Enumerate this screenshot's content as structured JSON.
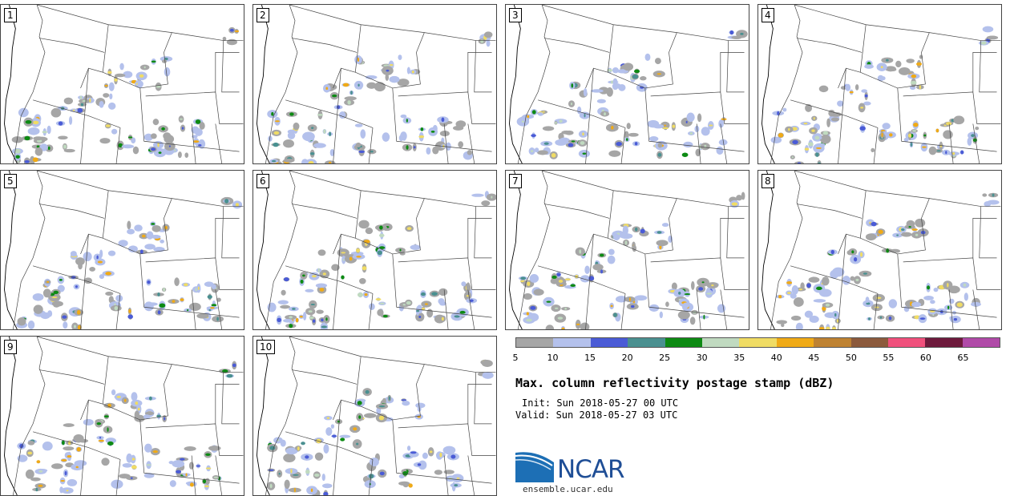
{
  "title": "Max. column reflectivity postage stamp (dBZ)",
  "init": "Init: Sun 2018-05-27 00 UTC",
  "valid": "Valid: Sun 2018-05-27 03 UTC",
  "logo": {
    "name": "NCAR",
    "site": "ensemble.ucar.edu"
  },
  "members": [
    "1",
    "2",
    "3",
    "4",
    "5",
    "6",
    "7",
    "8",
    "9",
    "10"
  ],
  "colorbar": {
    "ticks": [
      "5",
      "10",
      "15",
      "20",
      "25",
      "30",
      "35",
      "40",
      "45",
      "50",
      "55",
      "60",
      "65"
    ],
    "colors": [
      "#a6a6a6",
      "#b4c1ec",
      "#4a5bd6",
      "#4a9090",
      "#0d8a13",
      "#c0dac0",
      "#f0dc64",
      "#f0aa16",
      "#be8232",
      "#8c5a3c",
      "#f0507c",
      "#6e1a3c",
      "#b04aa8"
    ]
  }
}
